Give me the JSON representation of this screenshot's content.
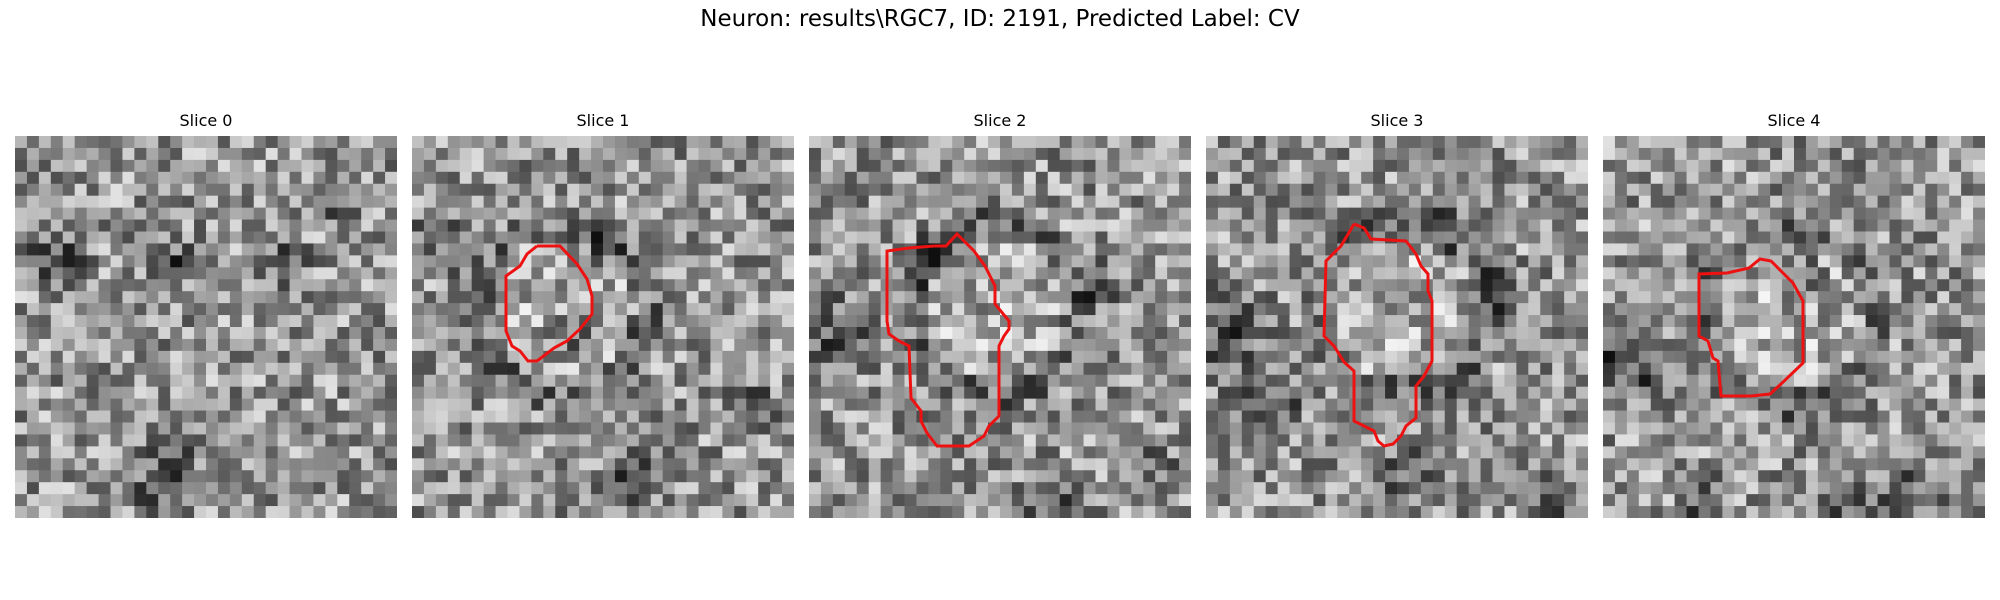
{
  "figure": {
    "title": "Neuron: results\\RGC7, ID: 2191, Predicted Label: CV"
  },
  "colors": {
    "contour": "#ee1111"
  },
  "panels": [
    {
      "title": "Slice 0",
      "has_contour": false
    },
    {
      "title": "Slice 1",
      "has_contour": true
    },
    {
      "title": "Slice 2",
      "has_contour": true
    },
    {
      "title": "Slice 3",
      "has_contour": true
    },
    {
      "title": "Slice 4",
      "has_contour": true
    }
  ]
}
